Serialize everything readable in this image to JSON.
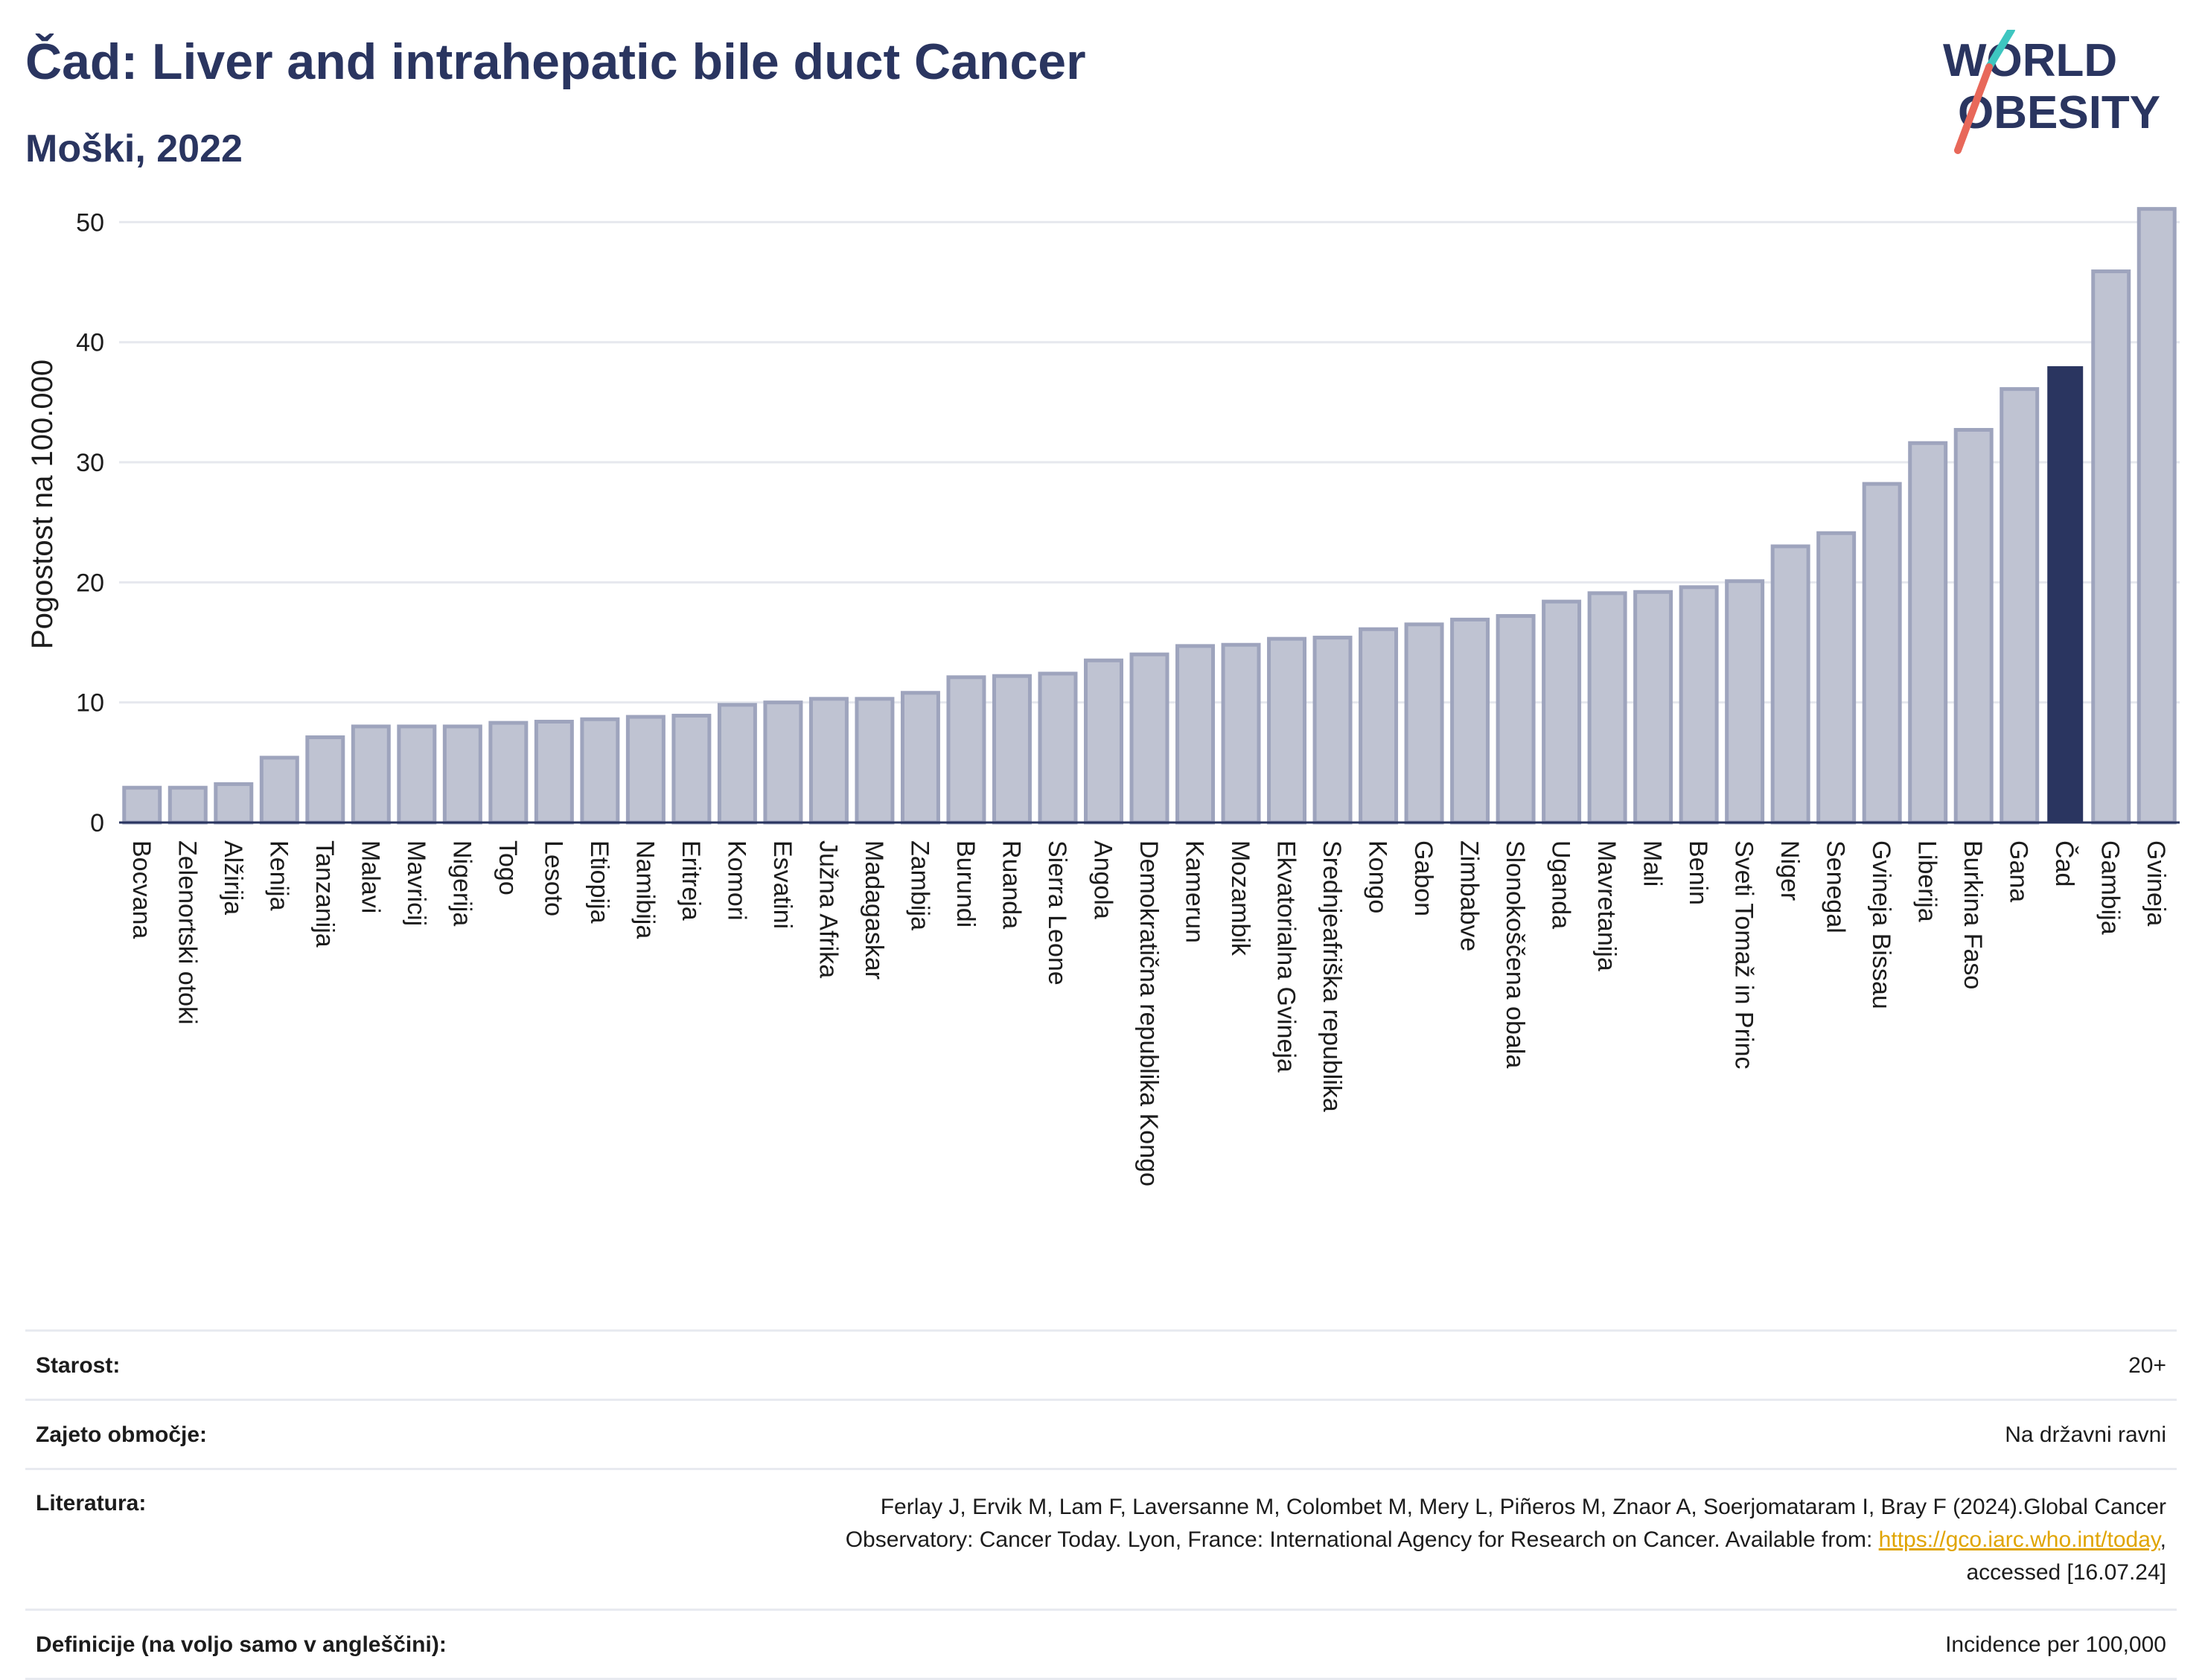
{
  "header": {
    "title": "Čad: Liver and intrahepatic bile duct Cancer",
    "subtitle": "Moški, 2022"
  },
  "logo": {
    "line1": "WORLD",
    "line2": "OBESITY",
    "accent_colors": [
      "#3ec6c0",
      "#e8685a"
    ]
  },
  "colors": {
    "bar": "#bfc3d2",
    "bar_border": "#9ea4bd",
    "highlight": "#2a3560",
    "grid": "#e6e8ee",
    "axis": "#2a3560"
  },
  "chart_data": {
    "type": "bar",
    "ylabel": "Pogostost na 100.000",
    "xlabel": "",
    "ylim": [
      0,
      53
    ],
    "yticks": [
      0,
      10,
      20,
      30,
      40,
      50
    ],
    "grid": true,
    "highlight_category": "Čad",
    "categories": [
      "Bocvana",
      "Zelenortski otoki",
      "Alžirija",
      "Kenija",
      "Tanzanija",
      "Malavi",
      "Mavricij",
      "Nigerija",
      "Togo",
      "Lesoto",
      "Etiopija",
      "Namibija",
      "Eritreja",
      "Komori",
      "Esvatini",
      "Južna Afrika",
      "Madagaskar",
      "Zambija",
      "Burundi",
      "Ruanda",
      "Sierra Leone",
      "Angola",
      "Demokratična republika Kongo",
      "Kamerun",
      "Mozambik",
      "Ekvatorialna Gvineja",
      "Srednjeafriška republika",
      "Kongo",
      "Gabon",
      "Zimbabve",
      "Slonokoščena obala",
      "Uganda",
      "Mavretanija",
      "Mali",
      "Benin",
      "Sveti Tomaž in Princ",
      "Niger",
      "Senegal",
      "Gvineja Bissau",
      "Liberija",
      "Burkina Faso",
      "Gana",
      "Čad",
      "Gambija",
      "Gvineja"
    ],
    "values": [
      2.9,
      2.9,
      3.2,
      5.4,
      7.1,
      8.0,
      8.0,
      8.0,
      8.3,
      8.4,
      8.6,
      8.8,
      8.9,
      9.8,
      10.0,
      10.3,
      10.3,
      10.8,
      12.1,
      12.2,
      12.4,
      13.5,
      14.0,
      14.7,
      14.8,
      15.3,
      15.4,
      16.1,
      16.5,
      16.9,
      17.2,
      18.4,
      19.1,
      19.2,
      19.6,
      20.1,
      23.0,
      24.1,
      28.2,
      31.6,
      32.7,
      36.1,
      38.0,
      45.9,
      51.1
    ]
  },
  "info": {
    "age_label": "Starost:",
    "age_value": "20+",
    "coverage_label": "Zajeto območje:",
    "coverage_value": "Na državni ravni",
    "literature_label": "Literatura:",
    "literature_line1": "Ferlay J, Ervik M, Lam F, Laversanne M, Colombet M, Mery L, Piñeros M, Znaor A, Soerjomataram I, Bray F (2024).Global Cancer",
    "literature_line2": "Observatory: Cancer Today. Lyon, France: International Agency for Research on Cancer. Available from: ",
    "literature_link": "https://gco.iarc.who.int/today",
    "literature_line2_end": ",",
    "literature_line3": "accessed [16.07.24]",
    "definitions_label": "Definicije (na voljo samo v angleščini):",
    "definitions_value": "Incidence per 100,000"
  }
}
